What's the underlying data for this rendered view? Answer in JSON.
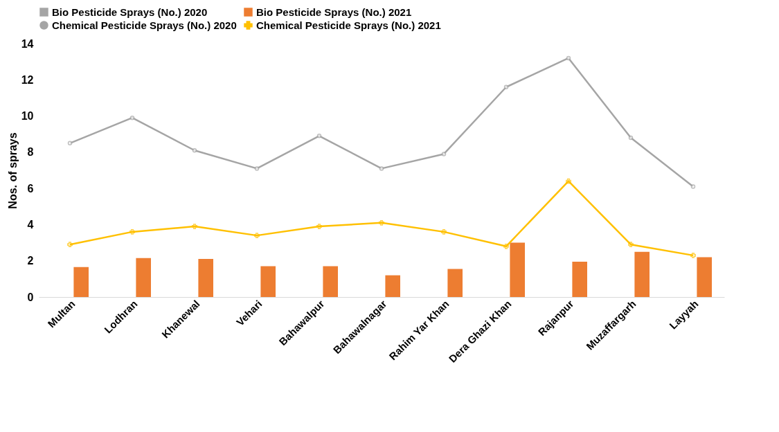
{
  "chart_data": {
    "type": "bar",
    "ylabel": "Nos. of sprays",
    "categories": [
      "Multan",
      "Lodhran",
      "Khanewal",
      "Vehari",
      "Bahawalpur",
      "Bahawalnagar",
      "Rahim Yar Khan",
      "Dera Ghazi Khan",
      "Rajanpur",
      "Muzaffargarh",
      "Layyah"
    ],
    "series": [
      {
        "name": "Bio Pesticide Sprays (No.) 2020",
        "color": "#a5a5a5",
        "values": [
          0,
          0,
          0,
          0,
          0,
          0,
          0,
          0,
          0,
          0,
          0
        ]
      },
      {
        "name": "Bio Pesticide Sprays (No.) 2021",
        "color": "#ed7d31",
        "values": [
          1.65,
          2.15,
          2.1,
          1.7,
          1.7,
          1.2,
          1.55,
          3.0,
          1.95,
          2.5,
          2.2
        ]
      },
      {
        "name": "Chemical Pesticide Sprays (No.) 2020",
        "type": "line",
        "color": "#a5a5a5",
        "marker": "circle",
        "values": [
          8.5,
          9.9,
          8.1,
          7.1,
          8.9,
          7.1,
          7.9,
          11.6,
          13.2,
          8.8,
          6.1
        ]
      },
      {
        "name": "Chemical Pesticide Sprays (No.) 2021",
        "type": "line",
        "color": "#ffc000",
        "marker": "cross",
        "values": [
          2.9,
          3.6,
          3.9,
          3.4,
          3.9,
          4.1,
          3.6,
          2.8,
          6.4,
          2.9,
          2.3
        ]
      }
    ],
    "ylim": [
      0,
      14
    ],
    "yticks": [
      0,
      2,
      4,
      6,
      8,
      10,
      12,
      14
    ],
    "grid": false,
    "legend": "top"
  }
}
